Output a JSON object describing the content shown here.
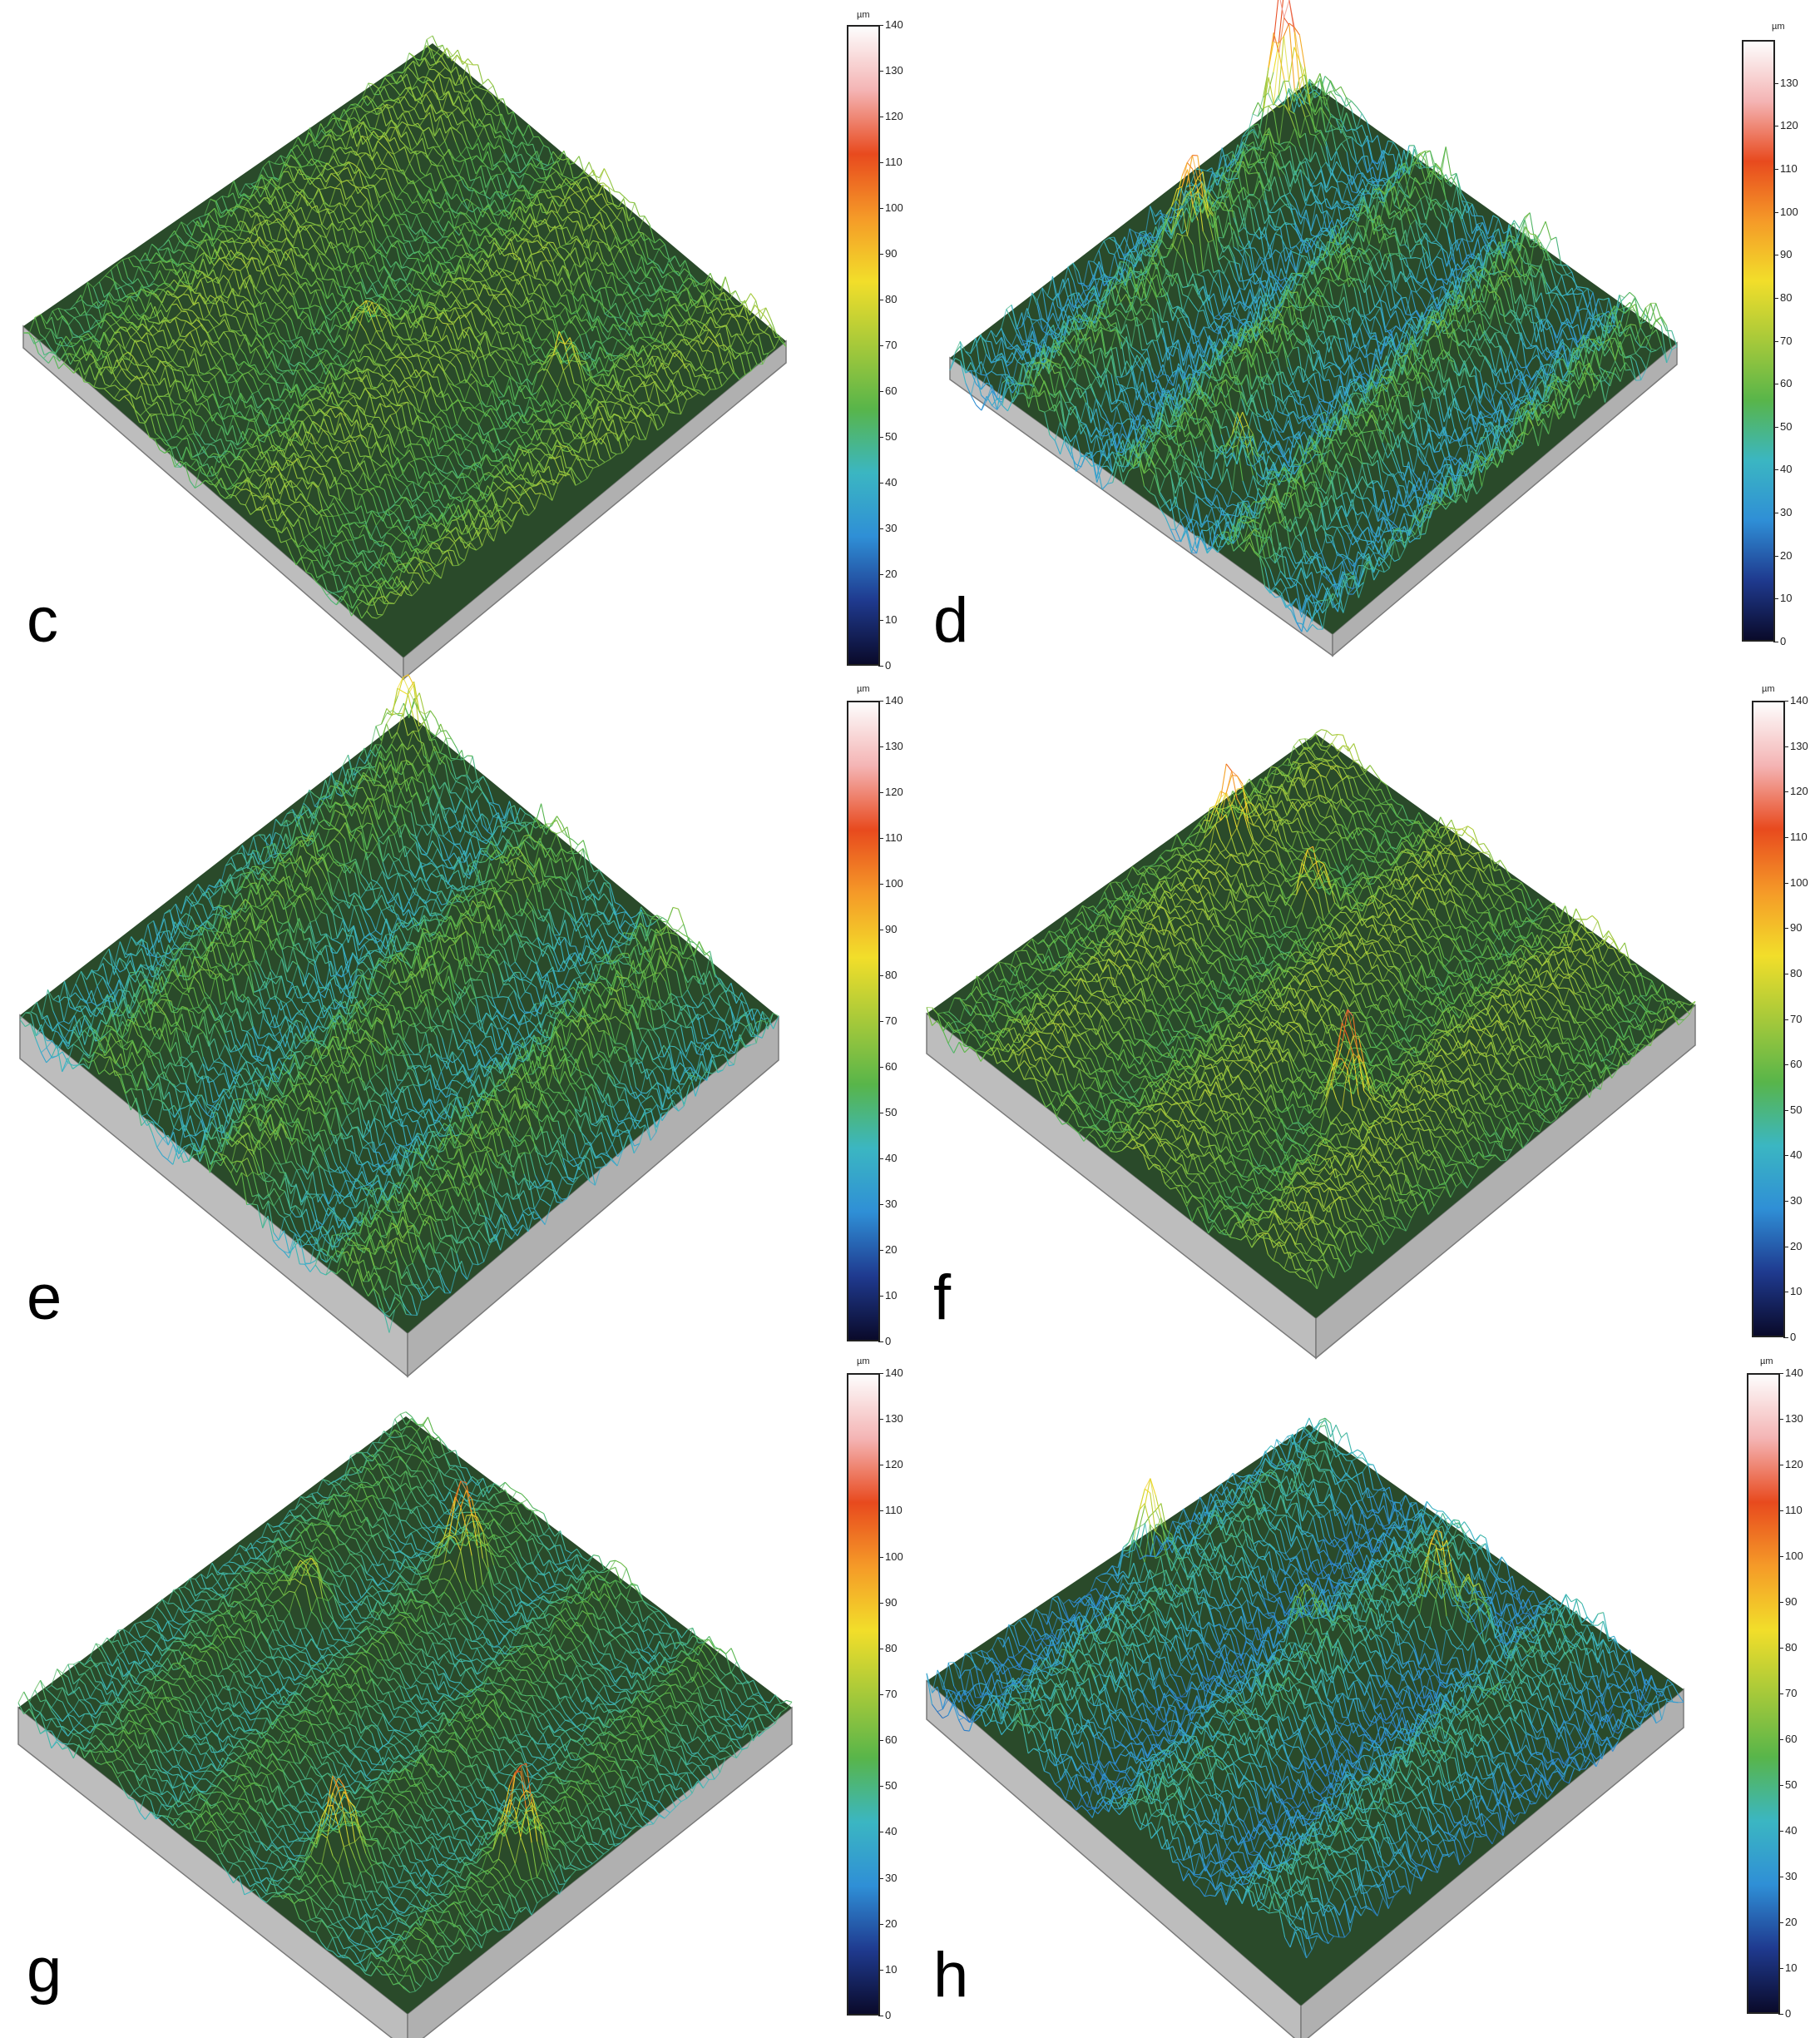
{
  "colormap": {
    "stops": [
      "#0a0a2a",
      "#1f3a8f",
      "#2f8fd6",
      "#3bb6c2",
      "#58b54a",
      "#a6c93a",
      "#f2de2a",
      "#f59a28",
      "#e84a1e",
      "#f4b4b4",
      "#fdfdfd"
    ],
    "unit": "µm",
    "min": 0,
    "max": 140
  },
  "panels": [
    {
      "letter": "c",
      "mean_height_um": 60,
      "roughness": 0.55,
      "ridge_count": 5,
      "peaks": [
        {
          "u": 0.78,
          "v": 0.35,
          "h": 30
        },
        {
          "u": 0.45,
          "v": 0.55,
          "h": 22
        }
      ],
      "colorbar_ticks": [
        "0",
        "10",
        "20",
        "30",
        "40",
        "50",
        "60",
        "70",
        "80",
        "90",
        "100",
        "110",
        "120",
        "130",
        "140"
      ]
    },
    {
      "letter": "d",
      "mean_height_um": 45,
      "roughness": 0.9,
      "ridge_count": 7,
      "peaks": [
        {
          "u": 0.05,
          "v": 0.12,
          "h": 80
        },
        {
          "u": 0.15,
          "v": 0.48,
          "h": 55
        },
        {
          "u": 0.62,
          "v": 0.82,
          "h": 45
        }
      ],
      "colorbar_ticks": [
        "0",
        "10",
        "20",
        "30",
        "40",
        "50",
        "60",
        "70",
        "80",
        "90",
        "100",
        "110",
        "120",
        "130"
      ]
    },
    {
      "letter": "e",
      "mean_height_um": 50,
      "roughness": 0.75,
      "ridge_count": 6,
      "peaks": [
        {
          "u": 0.04,
          "v": 0.05,
          "h": 30
        }
      ],
      "colorbar_ticks": [
        "0",
        "10",
        "20",
        "30",
        "40",
        "50",
        "60",
        "70",
        "80",
        "90",
        "100",
        "110",
        "120",
        "130",
        "140"
      ]
    },
    {
      "letter": "f",
      "mean_height_um": 62,
      "roughness": 0.55,
      "ridge_count": 6,
      "peaks": [
        {
          "u": 0.72,
          "v": 0.62,
          "h": 60
        },
        {
          "u": 0.08,
          "v": 0.3,
          "h": 40
        },
        {
          "u": 0.3,
          "v": 0.3,
          "h": 35
        }
      ],
      "colorbar_ticks": [
        "0",
        "10",
        "20",
        "30",
        "40",
        "50",
        "60",
        "70",
        "80",
        "90",
        "100",
        "110",
        "120",
        "130",
        "140"
      ]
    },
    {
      "letter": "g",
      "mean_height_um": 50,
      "roughness": 0.45,
      "ridge_count": 8,
      "peaks": [
        {
          "u": 0.92,
          "v": 0.62,
          "h": 60
        },
        {
          "u": 0.35,
          "v": 0.2,
          "h": 55
        },
        {
          "u": 0.68,
          "v": 0.85,
          "h": 50
        },
        {
          "u": 0.2,
          "v": 0.45,
          "h": 30
        }
      ],
      "colorbar_ticks": [
        "0",
        "10",
        "20",
        "30",
        "40",
        "50",
        "60",
        "70",
        "80",
        "90",
        "100",
        "110",
        "120",
        "130",
        "140"
      ]
    },
    {
      "letter": "h",
      "mean_height_um": 38,
      "roughness": 0.75,
      "ridge_count": 6,
      "peaks": [
        {
          "u": 0.06,
          "v": 0.48,
          "h": 55
        },
        {
          "u": 0.55,
          "v": 0.2,
          "h": 60
        },
        {
          "u": 0.62,
          "v": 0.18,
          "h": 45
        },
        {
          "u": 0.4,
          "v": 0.4,
          "h": 30
        }
      ],
      "colorbar_ticks": [
        "0",
        "10",
        "20",
        "30",
        "40",
        "50",
        "60",
        "70",
        "80",
        "90",
        "100",
        "110",
        "120",
        "130",
        "140"
      ]
    }
  ]
}
